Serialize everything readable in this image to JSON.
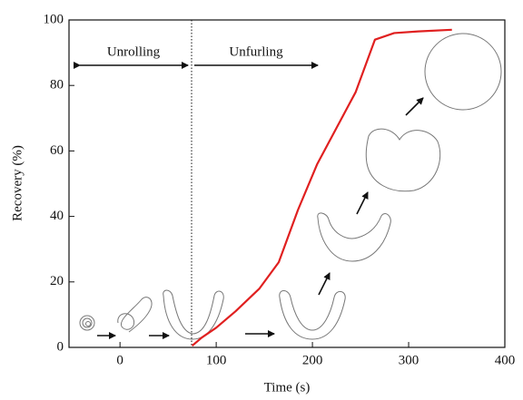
{
  "chart_data": {
    "type": "line",
    "x_label": "Time (s)",
    "y_label": "Recovery (%)",
    "annotations": [
      "Unrolling",
      "Unfurling"
    ],
    "x": [
      75,
      85,
      100,
      120,
      145,
      165,
      185,
      205,
      225,
      245,
      265,
      285,
      310,
      345
    ],
    "values": [
      0.5,
      3,
      6,
      11,
      18,
      26,
      42,
      56,
      67,
      78,
      94,
      96,
      96.5,
      97
    ],
    "color": "#e02020",
    "xlim": [
      -53,
      400
    ],
    "xticks": [
      0,
      100,
      200,
      300,
      400
    ],
    "ylim": [
      0,
      100
    ],
    "yticks": [
      0,
      20,
      40,
      60,
      80,
      100
    ]
  }
}
